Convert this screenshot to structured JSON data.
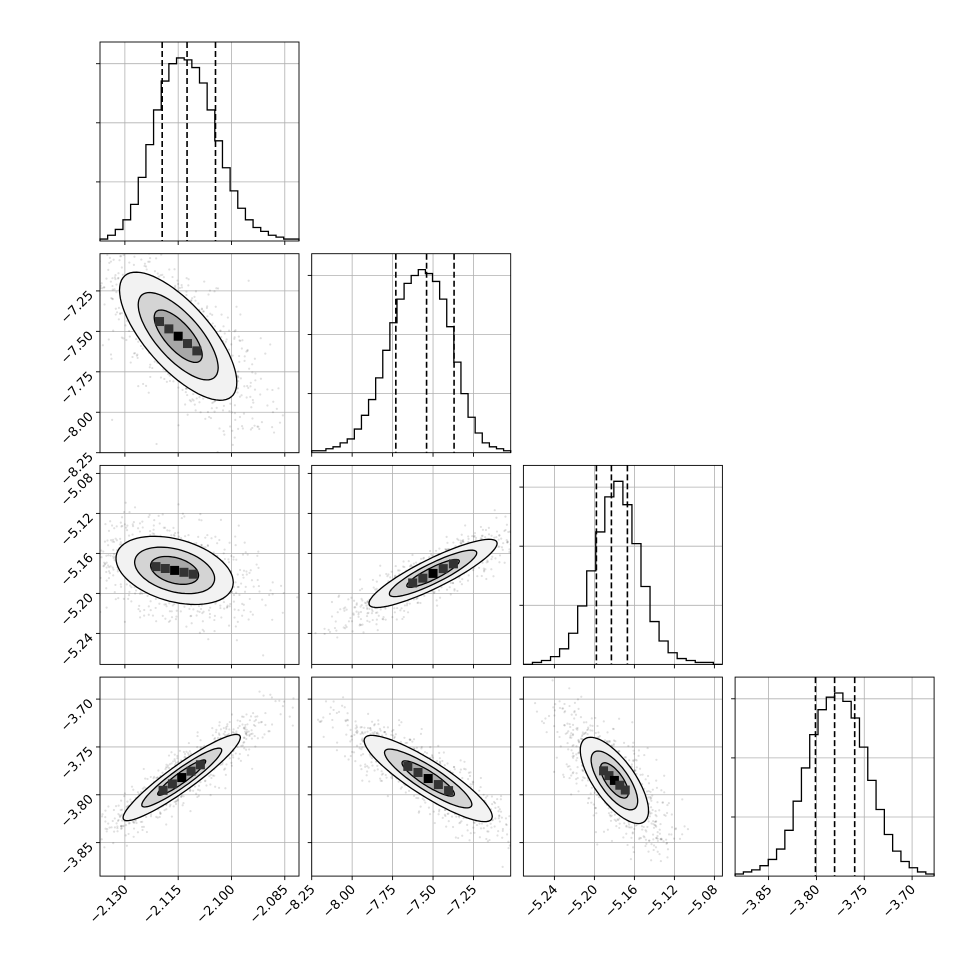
{
  "chart_data": {
    "type": "corner",
    "grid": true,
    "parameters": [
      {
        "range": [
          -2.137,
          -2.081
        ],
        "ticks": [
          -2.13,
          -2.115,
          -2.1,
          -2.085
        ],
        "tick_labels": [
          "−2.130",
          "−2.115",
          "−2.100",
          "−2.085"
        ],
        "quantiles": [
          -2.1195,
          -2.1125,
          -2.1045
        ],
        "hist_counts": [
          1,
          3,
          6,
          11,
          19,
          33,
          50,
          68,
          83,
          92,
          95,
          94,
          90,
          82,
          68,
          52,
          38,
          26,
          17,
          11,
          7,
          5,
          3,
          2,
          1,
          1
        ]
      },
      {
        "range": [
          -8.25,
          -7.02
        ],
        "ticks": [
          -8.25,
          -8.0,
          -7.75,
          -7.5,
          -7.25
        ],
        "tick_labels": [
          "−8.25",
          "−8.00",
          "−7.75",
          "−7.50",
          "−7.25"
        ],
        "quantiles": [
          -7.73,
          -7.54,
          -7.37
        ],
        "hist_counts": [
          1,
          1,
          2,
          3,
          5,
          7,
          12,
          19,
          27,
          38,
          52,
          66,
          78,
          86,
          90,
          93,
          91,
          87,
          78,
          64,
          46,
          30,
          18,
          10,
          5,
          3,
          2,
          1
        ]
      },
      {
        "range": [
          -5.271,
          -5.072
        ],
        "ticks": [
          -5.24,
          -5.2,
          -5.16,
          -5.12,
          -5.08
        ],
        "tick_labels": [
          "−5.24",
          "−5.20",
          "−5.16",
          "−5.12",
          "−5.08"
        ],
        "quantiles": [
          -5.198,
          -5.183,
          -5.167
        ],
        "hist_counts": [
          0,
          1,
          2,
          4,
          8,
          16,
          30,
          48,
          68,
          86,
          94,
          82,
          62,
          40,
          22,
          12,
          6,
          3,
          2,
          1,
          1,
          0
        ]
      },
      {
        "range": [
          -3.885,
          -3.677
        ],
        "ticks": [
          -3.85,
          -3.8,
          -3.75,
          -3.7
        ],
        "tick_labels": [
          "−3.85",
          "−3.80",
          "−3.75",
          "−3.70"
        ],
        "quantiles": [
          -3.801,
          -3.781,
          -3.76
        ],
        "hist_counts": [
          1,
          2,
          3,
          5,
          8,
          13,
          22,
          36,
          52,
          68,
          80,
          86,
          88,
          84,
          76,
          62,
          46,
          32,
          20,
          12,
          7,
          4,
          2,
          1
        ]
      }
    ],
    "pairs": [
      {
        "row": 1,
        "col": 0,
        "rho": -0.72,
        "peak": [
          -2.115,
          -7.53
        ]
      },
      {
        "row": 2,
        "col": 0,
        "rho": -0.35,
        "peak": [
          -2.116,
          -5.177
        ]
      },
      {
        "row": 2,
        "col": 1,
        "rho": 0.88,
        "peak": [
          -7.5,
          -5.18
        ]
      },
      {
        "row": 3,
        "col": 0,
        "rho": 0.93,
        "peak": [
          -2.114,
          -3.782
        ]
      },
      {
        "row": 3,
        "col": 1,
        "rho": -0.88,
        "peak": [
          -7.53,
          -3.783
        ]
      },
      {
        "row": 3,
        "col": 2,
        "rho": -0.7,
        "peak": [
          -5.18,
          -3.785
        ]
      }
    ],
    "levels": [
      0.39,
      0.86,
      0.99
    ],
    "colors": {
      "line": "#000000",
      "grid": "#b0b0b0",
      "points": "#000000"
    }
  }
}
